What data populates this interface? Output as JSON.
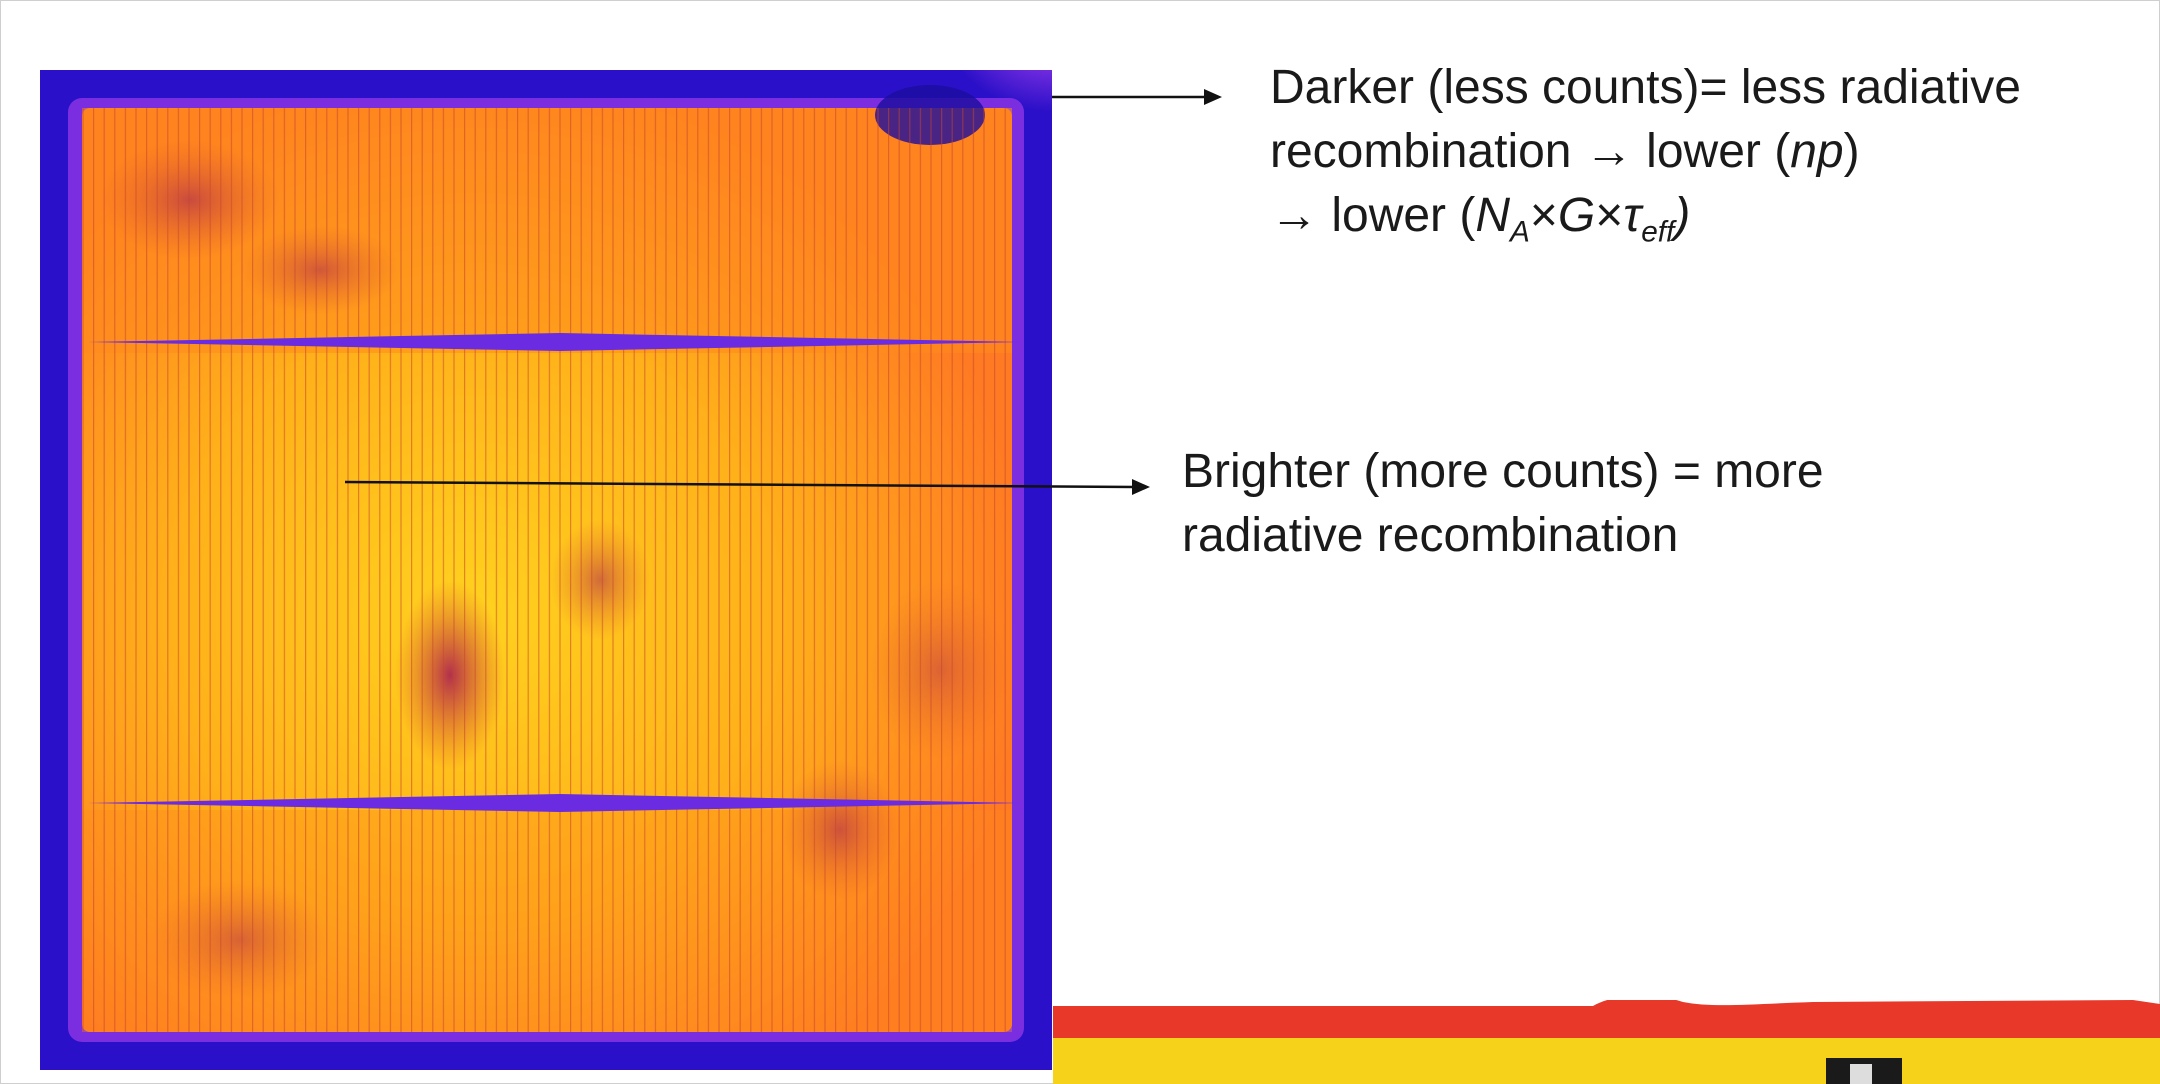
{
  "annotations": {
    "darker": {
      "line1": "Darker (less counts)= less radiative",
      "line2_prefix": "recombination → lower (",
      "line2_var": "np",
      "line2_suffix": ")",
      "line3_prefix": "→ lower (",
      "line3_na": "N",
      "line3_na_sub": "A",
      "line3_times1": "×",
      "line3_g": "G",
      "line3_times2": "×",
      "line3_tau": "τ",
      "line3_tau_sub": "eff",
      "line3_suffix": ")"
    },
    "brighter": {
      "line1": "Brighter (more counts) = more",
      "line2": "radiative recombination"
    }
  },
  "colors": {
    "border": "#2a10c8",
    "bright": "#ffc21a",
    "mid": "#ff8a1e",
    "dark_spot": "#c23a4a",
    "busbar": "#6b2be0",
    "footer_red": "#e8382a",
    "footer_yellow": "#f7d21a",
    "arrow": "#111111"
  }
}
